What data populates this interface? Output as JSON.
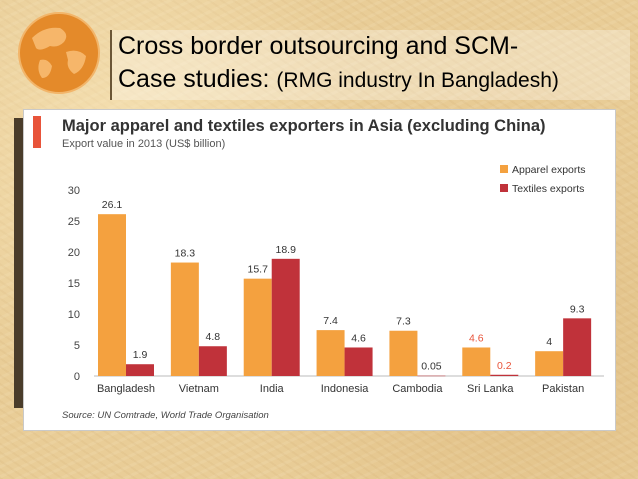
{
  "slide": {
    "title_line1": "Cross border outsourcing and SCM-",
    "title_line2_main": "Case studies: ",
    "title_line2_sub": "(RMG industry In Bangladesh)"
  },
  "chart_data": {
    "type": "bar",
    "title": "Major apparel and textiles exporters in Asia (excluding China)",
    "subtitle": "Export value in 2013 (US$ billion)",
    "source": "Source: UN Comtrade, World Trade Organisation",
    "categories": [
      "Bangladesh",
      "Vietnam",
      "India",
      "Indonesia",
      "Cambodia",
      "Sri Lanka",
      "Pakistan"
    ],
    "series": [
      {
        "name": "Apparel exports",
        "color": "#f4a13f",
        "values": [
          26.1,
          18.3,
          15.7,
          7.4,
          7.3,
          4.6,
          4
        ],
        "labels": [
          "26.1",
          "18.3",
          "15.7",
          "7.4",
          "7.3",
          "4.6",
          "4"
        ]
      },
      {
        "name": "Textiles exports",
        "color": "#c0323a",
        "values": [
          1.9,
          4.8,
          18.9,
          4.6,
          0.05,
          0.2,
          9.3
        ],
        "labels": [
          "1.9",
          "4.8",
          "18.9",
          "4.6",
          "0.05",
          "0.2",
          "9.3"
        ]
      }
    ],
    "ylim": [
      0,
      30
    ],
    "yticks": [
      0,
      5,
      10,
      15,
      20,
      25,
      30
    ],
    "grid": false,
    "legend": "top-right",
    "highlighted_label_color": "#e8543a",
    "highlighted_category": "Sri Lanka"
  }
}
